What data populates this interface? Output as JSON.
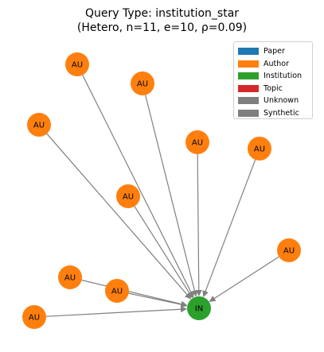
{
  "title": {
    "line1": "Query Type: institution_star",
    "line2": "(Hetero, n=11, e=10, ρ=0.09)"
  },
  "colors": {
    "paper": "#1f77b4",
    "author": "#ff7f0e",
    "institution": "#2ca02c",
    "topic": "#d62728",
    "unknown": "#7f7f7f",
    "synthetic": "#7f7f7f",
    "edge": "#808080"
  },
  "legend": [
    {
      "label": "Paper",
      "color": "#1f77b4"
    },
    {
      "label": "Author",
      "color": "#ff7f0e"
    },
    {
      "label": "Institution",
      "color": "#2ca02c"
    },
    {
      "label": "Topic",
      "color": "#d62728"
    },
    {
      "label": "Unknown",
      "color": "#7f7f7f"
    },
    {
      "label": "Synthetic",
      "color": "#7f7f7f"
    }
  ],
  "nodes": [
    {
      "id": "in",
      "label": "IN",
      "type": "institution"
    },
    {
      "id": "a1",
      "label": "AU",
      "type": "author"
    },
    {
      "id": "a2",
      "label": "AU",
      "type": "author"
    },
    {
      "id": "a3",
      "label": "AU",
      "type": "author"
    },
    {
      "id": "a4",
      "label": "AU",
      "type": "author"
    },
    {
      "id": "a5",
      "label": "AU",
      "type": "author"
    },
    {
      "id": "a6",
      "label": "AU",
      "type": "author"
    },
    {
      "id": "a7",
      "label": "AU",
      "type": "author"
    },
    {
      "id": "a8",
      "label": "AU",
      "type": "author"
    },
    {
      "id": "a9",
      "label": "AU",
      "type": "author"
    },
    {
      "id": "a10",
      "label": "AU",
      "type": "author"
    }
  ],
  "edges": [
    {
      "from": "a1",
      "to": "in"
    },
    {
      "from": "a2",
      "to": "in"
    },
    {
      "from": "a3",
      "to": "in"
    },
    {
      "from": "a4",
      "to": "in"
    },
    {
      "from": "a5",
      "to": "in"
    },
    {
      "from": "a6",
      "to": "in"
    },
    {
      "from": "a7",
      "to": "in"
    },
    {
      "from": "a8",
      "to": "in"
    },
    {
      "from": "a9",
      "to": "in"
    },
    {
      "from": "a10",
      "to": "in"
    }
  ]
}
